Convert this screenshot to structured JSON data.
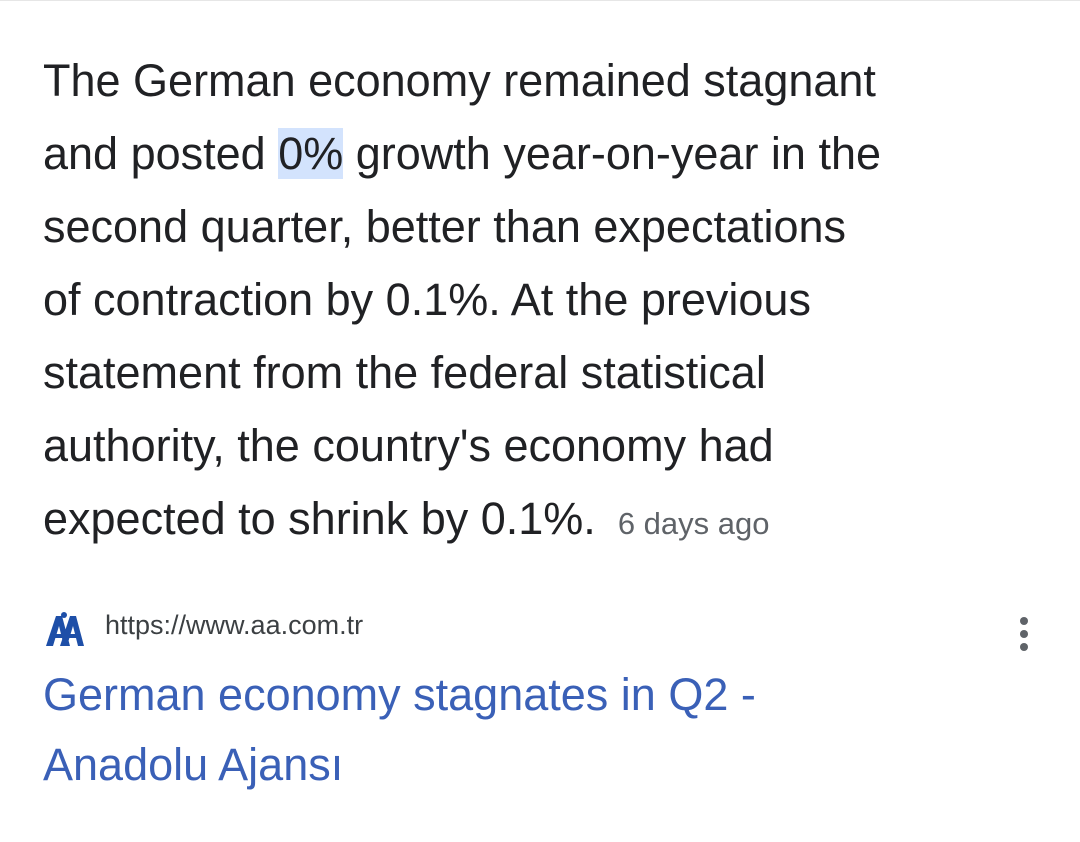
{
  "snippet": {
    "lines": [
      [
        "The German economy remained stagnant"
      ],
      [
        "and posted ",
        "0%",
        " growth year-on-year in the"
      ],
      [
        "second quarter, better than expectations"
      ],
      [
        "of contraction by 0.1%. At the previous"
      ],
      [
        "statement from the federal statistical"
      ],
      [
        "authority, the country's economy had"
      ],
      [
        "expected to shrink by 0.1%."
      ]
    ],
    "date": "6 days ago"
  },
  "result": {
    "url": "https://www.aa.com.tr",
    "title_lines": [
      "German economy stagnates in Q2 -",
      "Anadolu Ajansı"
    ]
  }
}
